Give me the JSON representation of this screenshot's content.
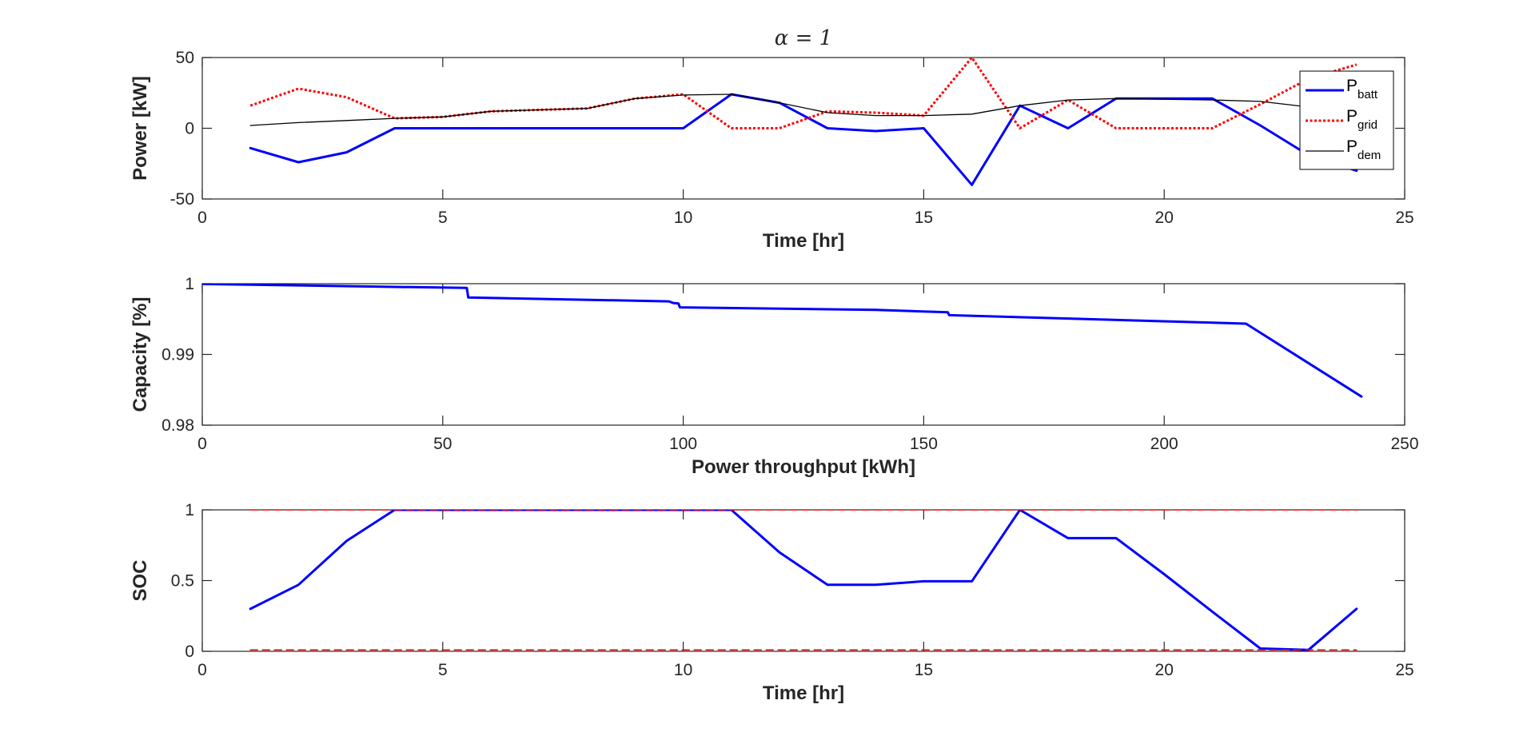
{
  "colors": {
    "blue": "#0000FF",
    "red": "#FF0000",
    "black": "#000000",
    "axis": "#262626"
  },
  "chart_data": [
    {
      "type": "line",
      "title": "α = 1",
      "xlabel": "Time [hr]",
      "ylabel": "Power [kW]",
      "xlim": [
        0,
        25
      ],
      "ylim": [
        -50,
        50
      ],
      "xticks": [
        0,
        5,
        10,
        15,
        20,
        25
      ],
      "yticks": [
        -50,
        0,
        50
      ],
      "grid": false,
      "legend_position": "top-right",
      "x": [
        1,
        2,
        3,
        4,
        5,
        6,
        7,
        8,
        9,
        10,
        11,
        12,
        13,
        14,
        15,
        16,
        17,
        18,
        19,
        20,
        21,
        22,
        23,
        24
      ],
      "series": [
        {
          "name": "P",
          "subscript": "batt",
          "color": "#0000FF",
          "style": "solid",
          "width": 3,
          "values": [
            -14,
            -24,
            -17,
            0,
            0,
            0,
            0,
            0,
            0,
            0,
            24,
            18,
            0,
            -2,
            0,
            -40,
            16,
            0,
            21,
            21,
            21,
            2,
            -19,
            -30
          ]
        },
        {
          "name": "P",
          "subscript": "grid",
          "color": "#FF0000",
          "style": "dotted",
          "width": 3,
          "values": [
            16,
            28,
            22,
            7,
            8,
            12,
            13,
            14,
            21,
            24,
            0,
            0,
            12,
            11,
            9,
            50,
            0,
            20,
            0,
            0,
            0,
            17,
            35,
            45
          ]
        },
        {
          "name": "P",
          "subscript": "dem",
          "color": "#000000",
          "style": "solid",
          "width": 1.3,
          "values": [
            2,
            4,
            5.5,
            7,
            8,
            12,
            13,
            14,
            21,
            23.5,
            24,
            18,
            11,
            9,
            9,
            10,
            16,
            20,
            21,
            20.5,
            20,
            19,
            15,
            15
          ]
        }
      ]
    },
    {
      "type": "line",
      "xlabel": "Power throughput [kWh]",
      "ylabel": "Capacity [%]",
      "xlim": [
        0,
        250
      ],
      "ylim": [
        0.98,
        1
      ],
      "xticks": [
        0,
        50,
        100,
        150,
        200,
        250
      ],
      "yticks": [
        0.98,
        0.99,
        1
      ],
      "grid": false,
      "series": [
        {
          "color": "#0000FF",
          "style": "solid",
          "width": 3,
          "x": [
            0,
            55,
            55.3,
            97,
            98,
            99,
            99.3,
            140,
            155,
            155.3,
            217,
            241
          ],
          "values": [
            0.99995,
            0.9994,
            0.99805,
            0.9975,
            0.99725,
            0.9972,
            0.99665,
            0.9963,
            0.99595,
            0.99555,
            0.99435,
            0.98405
          ]
        }
      ]
    },
    {
      "type": "line",
      "xlabel": "Time [hr]",
      "ylabel": "SOC",
      "xlim": [
        0,
        25
      ],
      "ylim": [
        0,
        1
      ],
      "xticks": [
        0,
        5,
        10,
        15,
        20,
        25
      ],
      "yticks": [
        0,
        0.5,
        1
      ],
      "tick_labels_y": [
        "0",
        "0.5",
        "1"
      ],
      "grid": false,
      "x": [
        1,
        2,
        3,
        4,
        5,
        6,
        7,
        8,
        9,
        10,
        11,
        12,
        13,
        14,
        15,
        16,
        17,
        18,
        19,
        20,
        21,
        22,
        23,
        24
      ],
      "series": [
        {
          "color": "#0000FF",
          "style": "solid",
          "width": 3,
          "values": [
            0.3,
            0.47,
            0.78,
            1,
            1,
            1,
            1,
            1,
            1,
            1,
            1,
            0.7,
            0.47,
            0.47,
            0.495,
            0.495,
            1,
            0.8,
            0.8,
            0.545,
            0.28,
            0.02,
            0.01,
            0.3
          ]
        },
        {
          "color": "#FF0000",
          "style": "dashed",
          "width": 1.5,
          "x": [
            1,
            24
          ],
          "values": [
            1,
            1
          ]
        },
        {
          "color": "#FF0000",
          "style": "dashed",
          "width": 1.5,
          "x": [
            1,
            24
          ],
          "values": [
            0.01,
            0.01
          ]
        }
      ]
    }
  ]
}
